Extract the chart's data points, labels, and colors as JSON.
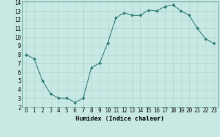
{
  "x": [
    0,
    1,
    2,
    3,
    4,
    5,
    6,
    7,
    8,
    9,
    10,
    11,
    12,
    13,
    14,
    15,
    16,
    17,
    18,
    19,
    20,
    21,
    22,
    23
  ],
  "y": [
    8,
    7.5,
    5,
    3.5,
    3,
    3,
    2.5,
    3,
    6.5,
    7,
    9.3,
    12.2,
    12.8,
    12.5,
    12.5,
    13.1,
    13,
    13.5,
    13.7,
    13,
    12.5,
    11,
    9.8,
    9.3
  ],
  "line_color": "#2e7b6e",
  "marker_color": "#2e7b6e",
  "bg_color": "#c8e8e4",
  "grid_major_color": "#b0d4d0",
  "grid_minor_color": "#c0dcda",
  "xlabel": "Humidex (Indice chaleur)",
  "xlabel_fontsize": 6.5,
  "tick_fontsize": 5.5,
  "ylim": [
    2,
    14
  ],
  "xlim": [
    -0.5,
    23.5
  ],
  "yticks": [
    2,
    3,
    4,
    5,
    6,
    7,
    8,
    9,
    10,
    11,
    12,
    13,
    14
  ],
  "xticks": [
    0,
    1,
    2,
    3,
    4,
    5,
    6,
    7,
    8,
    9,
    10,
    11,
    12,
    13,
    14,
    15,
    16,
    17,
    18,
    19,
    20,
    21,
    22,
    23
  ],
  "line_width": 0.8,
  "marker_size": 2.0
}
